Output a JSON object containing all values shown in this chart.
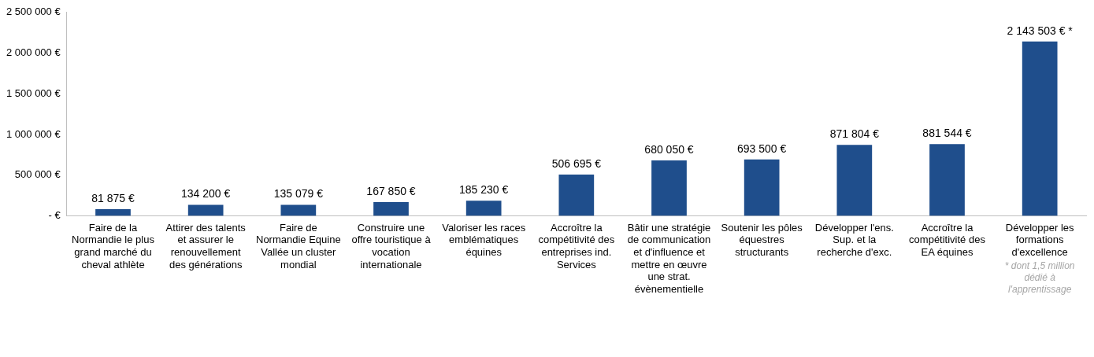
{
  "chart_data": {
    "type": "bar",
    "categories": [
      "Faire de la Normandie le plus grand marché du cheval athlète",
      "Attirer des talents et assurer le renouvellement des générations",
      "Faire de Normandie Equine Vallée un cluster mondial",
      "Construire une offre touristique à vocation internationale",
      "Valoriser les races emblématiques équines",
      "Accroître la compétitivité des entreprises ind. Services",
      "Bâtir une stratégie de communication et d'influence et mettre en œuvre une strat. évènementielle",
      "Soutenir les pôles équestres structurants",
      "Développer l'ens. Sup. et la recherche d'exc.",
      "Accroître la compétitivité des EA équines",
      "Développer les formations d'excellence"
    ],
    "values": [
      81875,
      134200,
      135079,
      167850,
      185230,
      506695,
      680050,
      693500,
      871804,
      881544,
      2143503
    ],
    "value_labels": [
      "81 875 €",
      "134 200 €",
      "135 079 €",
      "167 850 €",
      "185 230 €",
      "506 695 €",
      "680 050 €",
      "693 500 €",
      "871 804 €",
      "881 544 €",
      "2 143 503 € *"
    ],
    "color": "#1f4e8c",
    "ylim": [
      0,
      2500000
    ],
    "yticks": [
      {
        "value": 0,
        "label": "- €"
      },
      {
        "value": 500000,
        "label": "500 000 €"
      },
      {
        "value": 1000000,
        "label": "1 000 000 €"
      },
      {
        "value": 1500000,
        "label": "1 500 000 €"
      },
      {
        "value": 2000000,
        "label": "2 000 000 €"
      },
      {
        "value": 2500000,
        "label": "2 500 000 €"
      }
    ],
    "grid": false,
    "legend": false,
    "annotations": [
      "* dont 1,5 million dédié à l'apprentissage"
    ]
  }
}
